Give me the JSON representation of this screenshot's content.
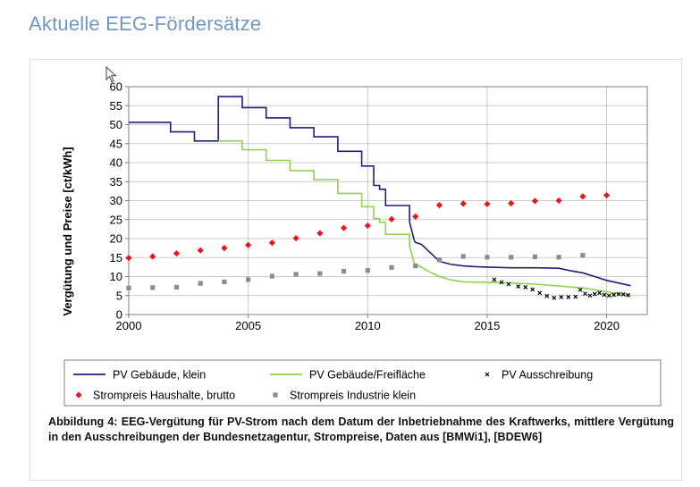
{
  "page": {
    "heading": "Aktuelle EEG-Fördersätze"
  },
  "figure": {
    "caption": "Abbildung 4: EEG-Vergütung für PV-Strom nach dem Datum der Inbetriebnahme des Kraftwerks, mittlere Vergütung in den Ausschreibungen der Bundesnetzagentur, Strompreise, Daten aus [BMWi1], [BDEW6]"
  },
  "chart_data": {
    "type": "line",
    "title": "",
    "xlabel": "",
    "ylabel": "Vergütung und Preise [ct/kWh]",
    "xlim": [
      2000,
      2021.7
    ],
    "ylim": [
      0,
      60
    ],
    "xticks": [
      2000,
      2005,
      2010,
      2015,
      2020
    ],
    "yticks": [
      0,
      5,
      10,
      15,
      20,
      25,
      30,
      35,
      40,
      45,
      50,
      55,
      60
    ],
    "grid": true,
    "legend_position": "bottom",
    "colors": {
      "gebaeude": "#1f1f7a",
      "freiflaeche": "#92d050",
      "ausschreibung": "#000000",
      "haushalte": "#e8161b",
      "industrie": "#8c8c8c"
    },
    "series": [
      {
        "name": "PV Gebäude, klein",
        "style": "step",
        "x": [
          2000,
          2001.75,
          2001.75,
          2002.75,
          2002.75,
          2003.75,
          2003.75,
          2004.75,
          2004.75,
          2005.75,
          2005.75,
          2006.75,
          2006.75,
          2007.75,
          2007.75,
          2008.75,
          2008.75,
          2009.75,
          2009.75,
          2010.25,
          2010.25,
          2010.5,
          2010.5,
          2010.75,
          2010.75,
          2011.75,
          2011.75,
          2011.95,
          2012,
          2012.25,
          2012.5,
          2012.75,
          2013,
          2013.5,
          2014,
          2014.5,
          2015,
          2016,
          2017,
          2018,
          2018.5,
          2019,
          2019.5,
          2020,
          2020.5,
          2021
        ],
        "y": [
          50.6,
          50.6,
          48.1,
          48.1,
          45.7,
          45.7,
          57.4,
          57.4,
          54.5,
          54.5,
          51.8,
          51.8,
          49.2,
          49.2,
          46.8,
          46.8,
          43.0,
          43.0,
          39.1,
          39.1,
          34.0,
          34.0,
          33.0,
          33.0,
          28.7,
          28.7,
          24.4,
          19.5,
          19.0,
          18.5,
          17.0,
          15.5,
          14.0,
          13.2,
          12.8,
          12.6,
          12.5,
          12.3,
          12.3,
          12.2,
          11.5,
          11.0,
          10.0,
          9.0,
          8.3,
          7.6
        ]
      },
      {
        "name": "PV Gebäude/Freifläche",
        "style": "step",
        "x": [
          2003.75,
          2004.75,
          2004.75,
          2005.75,
          2005.75,
          2006.75,
          2006.75,
          2007.75,
          2007.75,
          2008.75,
          2008.75,
          2009.75,
          2009.75,
          2010.25,
          2010.25,
          2010.5,
          2010.5,
          2010.75,
          2010.75,
          2011.75,
          2011.75,
          2011.95,
          2012,
          2012.25,
          2012.5,
          2013,
          2013.5,
          2014,
          2015,
          2016,
          2017,
          2018,
          2019,
          2020,
          2021
        ],
        "y": [
          45.7,
          45.7,
          43.4,
          43.4,
          40.6,
          40.6,
          37.9,
          37.9,
          35.5,
          35.5,
          31.9,
          31.9,
          28.4,
          28.4,
          25.3,
          25.3,
          24.3,
          24.3,
          21.1,
          21.1,
          17.9,
          13.5,
          13.2,
          12.5,
          11.5,
          10.0,
          9.1,
          8.6,
          8.5,
          8.3,
          8.0,
          7.5,
          7.0,
          6.0,
          5.0
        ]
      },
      {
        "name": "PV Ausschreibung",
        "style": "markers",
        "marker": "x",
        "x": [
          2015.3,
          2015.6,
          2015.9,
          2016.3,
          2016.6,
          2016.9,
          2017.2,
          2017.5,
          2017.8,
          2018.1,
          2018.4,
          2018.7,
          2018.9,
          2019.1,
          2019.3,
          2019.5,
          2019.7,
          2019.9,
          2020.1,
          2020.3,
          2020.5,
          2020.7,
          2020.9
        ],
        "y": [
          9.2,
          8.5,
          8.0,
          7.4,
          7.2,
          6.6,
          5.7,
          4.9,
          4.4,
          4.6,
          4.6,
          4.7,
          6.5,
          5.5,
          5.0,
          5.4,
          5.7,
          5.2,
          5.0,
          5.2,
          5.4,
          5.3,
          5.1
        ]
      },
      {
        "name": "Strompreis Haushalte, brutto",
        "style": "markers",
        "marker": "diamond",
        "x": [
          2000,
          2001,
          2002,
          2003,
          2004,
          2005,
          2006,
          2007,
          2008,
          2009,
          2010,
          2011,
          2012,
          2013,
          2014,
          2015,
          2016,
          2017,
          2018,
          2019,
          2020
        ],
        "y": [
          14.9,
          15.3,
          16.1,
          16.9,
          17.5,
          18.3,
          18.9,
          20.1,
          21.4,
          22.8,
          23.4,
          25.1,
          25.8,
          28.8,
          29.2,
          29.1,
          29.3,
          29.9,
          30.0,
          31.1,
          31.4
        ]
      },
      {
        "name": "Strompreis Industrie klein",
        "style": "markers",
        "marker": "square",
        "x": [
          2000,
          2001,
          2002,
          2003,
          2004,
          2005,
          2006,
          2007,
          2008,
          2009,
          2010,
          2011,
          2012,
          2013,
          2014,
          2015,
          2016,
          2017,
          2018,
          2019
        ],
        "y": [
          7.0,
          7.1,
          7.2,
          8.2,
          8.6,
          9.2,
          10.1,
          10.6,
          10.8,
          11.4,
          11.6,
          12.4,
          12.8,
          14.4,
          15.3,
          15.1,
          15.1,
          15.2,
          15.1,
          15.6
        ]
      }
    ]
  }
}
